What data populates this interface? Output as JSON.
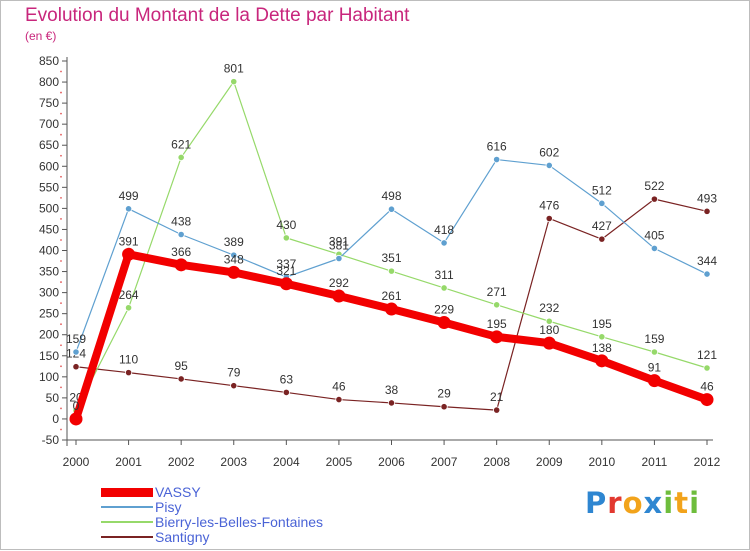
{
  "header": {
    "title": "Evolution du Montant de la Dette par Habitant",
    "unit": "(en €)"
  },
  "brand": {
    "letters": [
      {
        "ch": "P",
        "color": "#2e86d1"
      },
      {
        "ch": "r",
        "color": "#e2382f"
      },
      {
        "ch": "o",
        "color": "#f2a31b"
      },
      {
        "ch": "x",
        "color": "#2e86d1"
      },
      {
        "ch": "i",
        "color": "#6ebd3c"
      },
      {
        "ch": "t",
        "color": "#f2a31b"
      },
      {
        "ch": "i",
        "color": "#6ebd3c"
      }
    ]
  },
  "chart_data": {
    "type": "line",
    "title": "Evolution du Montant de la Dette par Habitant",
    "ylabel": "(en €)",
    "xlabel": "",
    "x": [
      "2000",
      "2001",
      "2002",
      "2003",
      "2004",
      "2005",
      "2006",
      "2007",
      "2008",
      "2009",
      "2010",
      "2011",
      "2012"
    ],
    "ylim": [
      -50,
      850
    ],
    "yticks": [
      -50,
      0,
      50,
      100,
      150,
      200,
      250,
      300,
      350,
      400,
      450,
      500,
      550,
      600,
      650,
      700,
      750,
      800,
      850
    ],
    "grid": false,
    "legend_position": "bottom-left",
    "series": [
      {
        "name": "Santigny",
        "color": "#7a2323",
        "width": 1.2,
        "values": [
          124,
          110,
          95,
          79,
          63,
          46,
          38,
          29,
          21,
          476,
          427,
          522,
          493
        ]
      },
      {
        "name": "Bierry-les-Belles-Fontaines",
        "color": "#96d96a",
        "width": 1.2,
        "values": [
          20,
          264,
          621,
          801,
          430,
          391,
          351,
          311,
          271,
          232,
          195,
          159,
          121
        ]
      },
      {
        "name": "Pisy",
        "color": "#5fa0d0",
        "width": 1.2,
        "values": [
          159,
          499,
          438,
          389,
          337,
          381,
          498,
          418,
          616,
          602,
          512,
          405,
          344
        ]
      },
      {
        "name": "VASSY",
        "color": "#f20000",
        "width": 8,
        "values": [
          0,
          391,
          366,
          348,
          321,
          292,
          261,
          229,
          195,
          180,
          138,
          91,
          46
        ]
      }
    ],
    "legend_order": [
      "VASSY",
      "Pisy",
      "Bierry-les-Belles-Fontaines",
      "Santigny"
    ]
  }
}
